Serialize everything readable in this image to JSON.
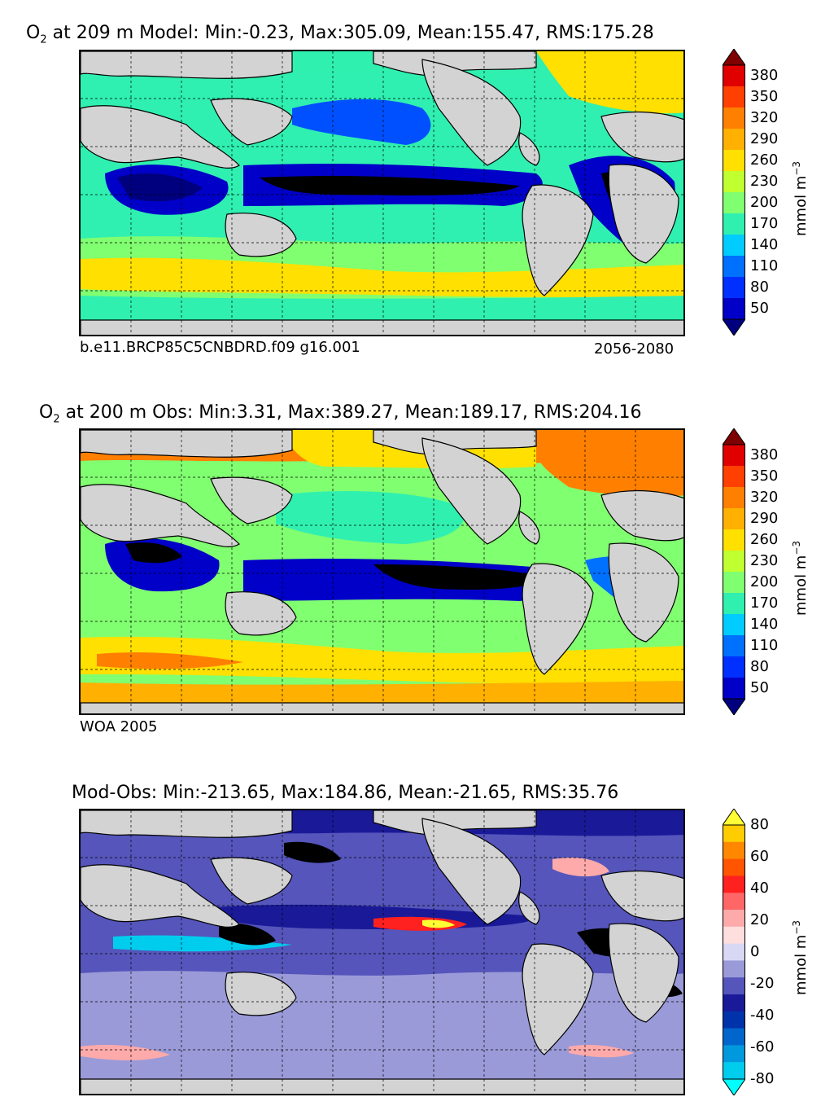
{
  "colors": {
    "o2": [
      "#00007f",
      "#0000c8",
      "#0030ff",
      "#0070ff",
      "#00ccff",
      "#30f0b0",
      "#80ff70",
      "#c0ff30",
      "#ffe000",
      "#ffb000",
      "#ff8000",
      "#ff4000",
      "#e00000",
      "#7f0000"
    ],
    "diff": [
      "#00ffff",
      "#00ccee",
      "#0099dd",
      "#0066cc",
      "#0033aa",
      "#1a1a99",
      "#5555bb",
      "#9a9ad8",
      "#d8d8f4",
      "#ffdede",
      "#ffaaaa",
      "#ff6666",
      "#ff2020",
      "#ff5500",
      "#ff8800",
      "#ffcc00",
      "#ffff33"
    ],
    "land": "#d3d3d3"
  },
  "chart_data": [
    {
      "type": "heatmap",
      "title_prefix": "O",
      "title_subscript": "2",
      "title_rest": " at 209 m Model: Min:-0.23, Max:305.09, Mean:155.47, RMS:175.28",
      "stats": {
        "min": -0.23,
        "max": 305.09,
        "mean": 155.47,
        "rms": 175.28
      },
      "depth": "209 m",
      "left_note": "b.e11.BRCP85C5CNBDRD.f09 g16.001",
      "right_note": "2056-2080",
      "colorbar": {
        "ticks": [
          "380",
          "350",
          "320",
          "290",
          "260",
          "230",
          "200",
          "170",
          "140",
          "110",
          "80",
          "50"
        ],
        "label_base": "mmol m",
        "label_sup": "−3",
        "extend": "both"
      }
    },
    {
      "type": "heatmap",
      "title_prefix": "O",
      "title_subscript": "2",
      "title_rest": " at 200 m Obs: Min:3.31, Max:389.27, Mean:189.17, RMS:204.16",
      "stats": {
        "min": 3.31,
        "max": 389.27,
        "mean": 189.17,
        "rms": 204.16
      },
      "depth": "200 m",
      "left_note": "WOA 2005",
      "colorbar": {
        "ticks": [
          "380",
          "350",
          "320",
          "290",
          "260",
          "230",
          "200",
          "170",
          "140",
          "110",
          "80",
          "50"
        ],
        "label_base": "mmol m",
        "label_sup": "−3",
        "extend": "both"
      }
    },
    {
      "type": "heatmap",
      "title": "Mod-Obs: Min:-213.65, Max:184.86, Mean:-21.65, RMS:35.76",
      "stats": {
        "min": -213.65,
        "max": 184.86,
        "mean": -21.65,
        "rms": 35.76
      },
      "colorbar": {
        "ticks": [
          "80",
          "60",
          "40",
          "20",
          "0",
          "-20",
          "-40",
          "-60",
          "-80"
        ],
        "label_base": "mmol m",
        "label_sup": "−3",
        "extend": "both"
      }
    }
  ]
}
